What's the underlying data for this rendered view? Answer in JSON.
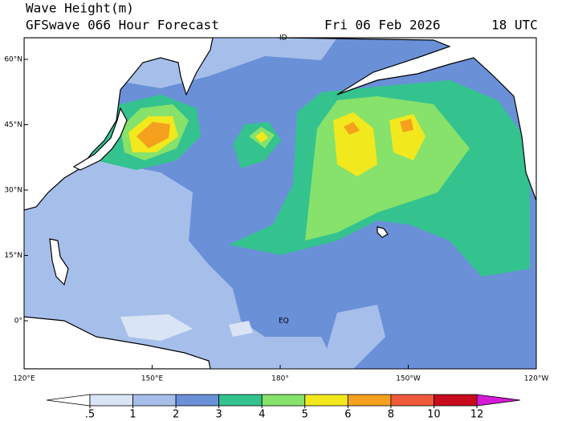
{
  "header": {
    "title": "Wave Height(m)",
    "subtitle": "GFSwave 066 Hour Forecast",
    "date": "Fri 06 Feb 2026",
    "time": "18 UTC"
  },
  "map": {
    "lat_labels": [
      "0°",
      "15°N",
      "30°N",
      "45°N",
      "60°N"
    ],
    "lon_labels": [
      "120°E",
      "150°E",
      "180°",
      "150°W",
      "120°W"
    ],
    "annotations": [
      "EQ",
      "ID"
    ]
  },
  "colorbar": {
    "ticks": [
      {
        "value": 0.5,
        "label": ".5"
      },
      1,
      2,
      3,
      4,
      5,
      6,
      8,
      10,
      12
    ],
    "colors": [
      "#ffffff",
      "#d9e4f5",
      "#a6bfea",
      "#6a90d8",
      "#34c38f",
      "#86e26a",
      "#f2e81e",
      "#f5a11d",
      "#ef5a3b",
      "#c80c1e",
      "#d61ad6"
    ]
  }
}
